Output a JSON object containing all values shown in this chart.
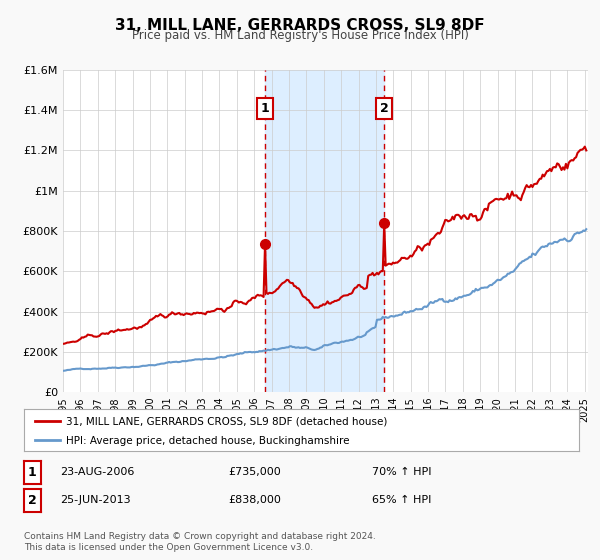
{
  "title": "31, MILL LANE, GERRARDS CROSS, SL9 8DF",
  "subtitle": "Price paid vs. HM Land Registry's House Price Index (HPI)",
  "ylim": [
    0,
    1600000
  ],
  "xlim_start": 1995.0,
  "xlim_end": 2025.2,
  "yticks": [
    0,
    200000,
    400000,
    600000,
    800000,
    1000000,
    1200000,
    1400000,
    1600000
  ],
  "ytick_labels": [
    "£0",
    "£200K",
    "£400K",
    "£600K",
    "£800K",
    "£1M",
    "£1.2M",
    "£1.4M",
    "£1.6M"
  ],
  "xticks": [
    1995,
    1996,
    1997,
    1998,
    1999,
    2000,
    2001,
    2002,
    2003,
    2004,
    2005,
    2006,
    2007,
    2008,
    2009,
    2010,
    2011,
    2012,
    2013,
    2014,
    2015,
    2016,
    2017,
    2018,
    2019,
    2020,
    2021,
    2022,
    2023,
    2024,
    2025
  ],
  "house_color": "#cc0000",
  "hpi_color": "#6699cc",
  "shaded_region_color": "#ddeeff",
  "vline_color": "#cc0000",
  "marker1_x": 2006.64,
  "marker1_y": 735000,
  "marker2_x": 2013.48,
  "marker2_y": 838000,
  "marker1_label": "1",
  "marker2_label": "2",
  "legend_house": "31, MILL LANE, GERRARDS CROSS, SL9 8DF (detached house)",
  "legend_hpi": "HPI: Average price, detached house, Buckinghamshire",
  "annotation1_date": "23-AUG-2006",
  "annotation1_price": "£735,000",
  "annotation1_hpi": "70% ↑ HPI",
  "annotation2_date": "25-JUN-2013",
  "annotation2_price": "£838,000",
  "annotation2_hpi": "65% ↑ HPI",
  "footer1": "Contains HM Land Registry data © Crown copyright and database right 2024.",
  "footer2": "This data is licensed under the Open Government Licence v3.0.",
  "background_color": "#f9f9f9",
  "plot_bg_color": "#ffffff",
  "grid_color": "#cccccc"
}
